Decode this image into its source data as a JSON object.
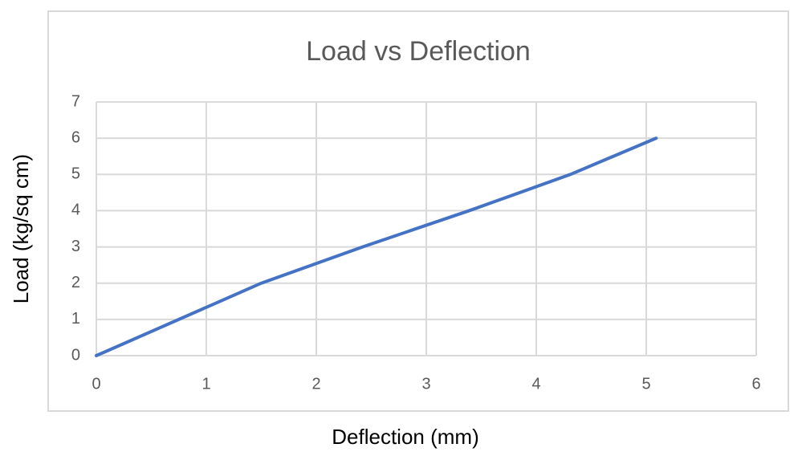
{
  "chart_data": {
    "type": "line",
    "title": "Load vs Deflection",
    "x_label": "Deflection (mm)",
    "y_label": "Load (kg/sq cm)",
    "x": [
      0,
      1.5,
      2.42,
      3.39,
      4.31,
      5.09
    ],
    "series": [
      {
        "name": "Load",
        "color": "#4472c4",
        "values": [
          0,
          2,
          3,
          4,
          5,
          6
        ]
      }
    ],
    "xlim": [
      0,
      6
    ],
    "xticks": [
      0,
      1,
      2,
      3,
      4,
      5,
      6
    ],
    "ylim": [
      0,
      7
    ],
    "yticks": [
      0,
      1,
      2,
      3,
      4,
      5,
      6,
      7
    ],
    "grid": true
  }
}
